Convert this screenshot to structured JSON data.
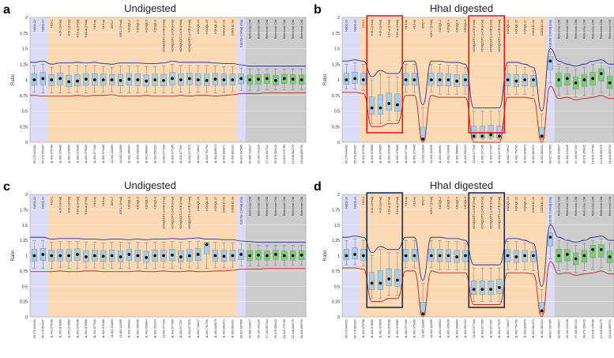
{
  "figure": {
    "colors": {
      "region_lavender": "#dcdcf8",
      "region_orange": "#fbd9b4",
      "region_gray": "#cccccc",
      "box_blue": "#a9cde4",
      "box_green": "#7ccf6e",
      "line_blue": "#2b2b9a",
      "line_red": "#c42222",
      "highlight_red": "#e01818",
      "highlight_navy": "#1b2a55",
      "point": "#111111"
    },
    "panels": [
      {
        "letter": "a",
        "title": "Undigested",
        "ylabel": "Ratio",
        "yticks": [
          "2",
          "1.75",
          "1.5",
          "1.25",
          "1",
          "0.75",
          "0.5",
          "0.25",
          "0"
        ],
        "highlight": "none"
      },
      {
        "letter": "b",
        "title": "HhaI digested",
        "ylabel": "Ratio",
        "yticks": [
          "2",
          "1.75",
          "1.5",
          "1.25",
          "1",
          "0.75",
          "0.5",
          "0.25",
          "0"
        ],
        "highlight": "red"
      },
      {
        "letter": "c",
        "title": "Undigested",
        "ylabel": "Ratio",
        "yticks": [
          "2",
          "1.75",
          "1.5",
          "1.25",
          "1",
          "0.75",
          "0.5",
          "0.25",
          "0"
        ],
        "highlight": "none"
      },
      {
        "letter": "d",
        "title": "HhaI digested",
        "ylabel": "Ratio",
        "yticks": [
          "2",
          "1.75",
          "1.5",
          "1.25",
          "1",
          "0.75",
          "0.5",
          "0.25",
          "0"
        ],
        "highlight": "navy"
      }
    ]
  },
  "chart_data": [
    {
      "type": "box",
      "panel": "a",
      "title": "Undigested",
      "ylabel": "Ratio",
      "ylim": [
        0,
        2
      ],
      "probe_labels": [
        "NSD1-22",
        "NSD1-24",
        "H19-1",
        "H19-1 [HhaI]",
        "H19-1 [HhaI]",
        "H19-up [HhaI]",
        "H19-up [HhaI]",
        "H19-up",
        "H19-up",
        "IGF2-7",
        "IGF2-7 [HhaI]",
        "KCNQ1-2",
        "KCNQ1-3",
        "KCNQ1-5",
        "KCNQ1-6",
        "KCNQ1OT1-1-ICR [HhaI]",
        "KCNQ1OT1-1-ICR [HhaI]",
        "KCNQ1OT1-1-ICR [HhaI]",
        "KCNQ1OT1-1-ICR [HhaI]",
        "KCNQ1-13",
        "KCNQ1-15",
        "KCNQ1-17",
        "CDKN1C-1b",
        "CDKN1C-3a",
        "ESCO2-3 [HhaI] (Dig)",
        "Reference C/M",
        "Reference C/M",
        "Reference C/M",
        "Reference C/M",
        "Reference C/M",
        "Reference C/M",
        "Reference C/M"
      ],
      "positions": [
        "05-176.640452",
        "05-176.654397",
        "11-001.975788",
        "11-001.976689",
        "11-001.976665",
        "11-001.976289",
        "11-001.976589",
        "11-001.977190",
        "11-001.979489",
        "11-002.111890",
        "11-002.111995",
        "11-002.356934",
        "11-002.439436",
        "11-002.566664",
        "11-002.591234",
        "11-002.677116",
        "11-002.677185",
        "11-002.677297",
        "11-002.677870",
        "11-002.746617",
        "11-002.754791",
        "11-002.826979",
        "11-002.861971",
        "11-002.862321",
        "08-027.697995",
        "02-060.416617",
        "03-194.341229",
        "07-116.607134",
        "09-079.359425",
        "16-015.375789",
        "12-048.852475",
        "18-046.859794"
      ],
      "category_types": [
        "lavender",
        "lavender",
        "orange",
        "orange",
        "orange",
        "orange",
        "orange",
        "orange",
        "orange",
        "orange",
        "orange",
        "orange",
        "orange",
        "orange",
        "orange",
        "orange",
        "orange",
        "orange",
        "orange",
        "orange",
        "orange",
        "orange",
        "orange",
        "orange",
        "lavender",
        "gray",
        "gray",
        "gray",
        "gray",
        "gray",
        "gray",
        "gray"
      ],
      "values": [
        1.0,
        1.02,
        1.0,
        1.02,
        0.97,
        0.98,
        1.01,
        1.0,
        1.0,
        1.0,
        0.99,
        1.01,
        1.0,
        0.98,
        1.0,
        0.99,
        1.02,
        1.0,
        1.02,
        1.0,
        0.99,
        1.01,
        1.0,
        1.0,
        1.02,
        1.0,
        1.01,
        1.02,
        0.99,
        1.02,
        1.01,
        1.0
      ],
      "upper_limit": [
        1.28,
        1.3,
        1.25,
        1.27,
        1.27,
        1.28,
        1.27,
        1.28,
        1.26,
        1.25,
        1.27,
        1.27,
        1.27,
        1.26,
        1.26,
        1.27,
        1.3,
        1.28,
        1.28,
        1.28,
        1.28,
        1.27,
        1.26,
        1.26,
        1.24,
        1.22,
        1.22,
        1.22,
        1.22,
        1.22,
        1.22,
        1.22
      ],
      "lower_limit": [
        0.75,
        0.74,
        0.74,
        0.74,
        0.74,
        0.75,
        0.74,
        0.75,
        0.75,
        0.76,
        0.74,
        0.74,
        0.74,
        0.75,
        0.74,
        0.74,
        0.74,
        0.75,
        0.74,
        0.75,
        0.75,
        0.74,
        0.75,
        0.76,
        0.78,
        0.78,
        0.78,
        0.79,
        0.79,
        0.79,
        0.79,
        0.79
      ]
    },
    {
      "type": "box",
      "panel": "b",
      "title": "HhaI digested",
      "ylabel": "Ratio",
      "ylim": [
        0,
        2
      ],
      "probe_labels": [
        "NSD1-22",
        "NSD1-24",
        "H19-1",
        "H19-1 [HhaI]",
        "H19-1 [HhaI]",
        "H19-up [HhaI]",
        "H19-up [HhaI]",
        "H19-up",
        "H19-up",
        "IGF2-7",
        "IGF2-7 [HhaI]",
        "KCNQ1-2",
        "KCNQ1-3",
        "KCNQ1-5",
        "KCNQ1-6",
        "KCNQ1OT1-1-ICR [HhaI]",
        "KCNQ1OT1-1-ICR [HhaI]",
        "KCNQ1OT1-1-ICR [HhaI]",
        "KCNQ1OT1-1-ICR [HhaI]",
        "KCNQ1-13",
        "KCNQ1-15",
        "KCNQ1-17",
        "CDKN1C-1b",
        "CDKN1C-3a",
        "ESCO2-3 [HhaI] (Dig)",
        "Reference C/M",
        "Reference C/M",
        "Reference C/M",
        "Reference C/M",
        "Reference C/M",
        "Reference C/M",
        "Reference C/M"
      ],
      "positions": [
        "05-176.640452",
        "05-176.654397",
        "11-001.975788",
        "11-001.976689",
        "11-001.976665",
        "11-001.976289",
        "11-001.976589",
        "11-001.977190",
        "11-001.979489",
        "11-002.111890",
        "11-002.111995",
        "11-002.356934",
        "11-002.439436",
        "11-002.566664",
        "11-002.591234",
        "11-002.677116",
        "11-002.677185",
        "11-002.677297",
        "11-002.677870",
        "11-002.746617",
        "11-002.754791",
        "11-002.826979",
        "11-002.861971",
        "11-002.862321",
        "08-027.697995",
        "02-060.416617",
        "03-194.341229",
        "07-116.607134",
        "09-079.359425",
        "16-015.375789",
        "12-048.852475",
        "18-046.859794"
      ],
      "category_types": [
        "lavender",
        "lavender",
        "orange",
        "orange",
        "orange",
        "orange",
        "orange",
        "orange",
        "orange",
        "orange",
        "orange",
        "orange",
        "orange",
        "orange",
        "orange",
        "orange",
        "orange",
        "orange",
        "orange",
        "orange",
        "orange",
        "orange",
        "orange",
        "orange",
        "lavender",
        "gray",
        "gray",
        "gray",
        "gray",
        "gray",
        "gray",
        "gray"
      ],
      "values": [
        1.0,
        1.02,
        1.0,
        0.55,
        0.55,
        0.62,
        0.6,
        1.0,
        1.0,
        0.05,
        1.0,
        1.0,
        1.0,
        0.98,
        1.0,
        0.1,
        0.1,
        0.12,
        0.1,
        1.0,
        0.98,
        1.0,
        1.0,
        0.1,
        1.3,
        1.0,
        1.02,
        0.95,
        1.0,
        1.02,
        1.1,
        0.95
      ],
      "upper_limit": [
        1.3,
        1.32,
        1.3,
        1.05,
        1.15,
        1.1,
        1.1,
        1.3,
        1.3,
        0.6,
        1.3,
        1.3,
        1.28,
        1.28,
        1.25,
        0.55,
        0.55,
        0.55,
        0.55,
        1.28,
        1.28,
        1.25,
        1.2,
        0.5,
        1.5,
        1.3,
        1.25,
        1.22,
        1.25,
        1.3,
        1.32,
        1.25
      ],
      "lower_limit": [
        0.8,
        0.8,
        0.78,
        0.25,
        0.25,
        0.3,
        0.3,
        0.75,
        0.75,
        0.0,
        0.75,
        0.72,
        0.72,
        0.72,
        0.72,
        0.0,
        0.0,
        0.0,
        0.0,
        0.72,
        0.72,
        0.72,
        0.7,
        0.0,
        0.9,
        0.7,
        0.72,
        0.68,
        0.7,
        0.72,
        0.75,
        0.7
      ]
    },
    {
      "type": "box",
      "panel": "c",
      "title": "Undigested",
      "ylabel": "Ratio",
      "ylim": [
        0,
        2
      ],
      "probe_labels": [
        "NSD1-22",
        "NSD1-24",
        "H19-1",
        "H19-1 [HhaI]",
        "H19-1 [HhaI]",
        "H19-up [HhaI]",
        "H19-up [HhaI]",
        "H19-up",
        "H19-up",
        "IGF2-7",
        "IGF2-7 [HhaI]",
        "KCNQ1-2",
        "KCNQ1-3",
        "KCNQ1-5",
        "KCNQ1-6",
        "KCNQ1OT1-1-ICR [HhaI]",
        "KCNQ1OT1-1-ICR [HhaI]",
        "KCNQ1OT1-1-ICR [HhaI]",
        "KCNQ1OT1-1-ICR [HhaI]",
        "KCNQ1-13",
        "KCNQ1-15",
        "KCNQ1-17",
        "CDKN1C-1b",
        "CDKN1C-3a",
        "ESCO2-3 [HhaI] (Dig)",
        "Reference C/M",
        "Reference C/M",
        "Reference C/M",
        "Reference C/M",
        "Reference C/M",
        "Reference C/M",
        "Reference C/M"
      ],
      "positions": [
        "05-176.640452",
        "05-176.654397",
        "11-001.975788",
        "11-001.976689",
        "11-001.976665",
        "11-001.976289",
        "11-001.976589",
        "11-001.977190",
        "11-001.979489",
        "11-002.111890",
        "11-002.111995",
        "11-002.356934",
        "11-002.439436",
        "11-002.566664",
        "11-002.591234",
        "11-002.677116",
        "11-002.677185",
        "11-002.677297",
        "11-002.677870",
        "11-002.746617",
        "11-002.754791",
        "11-002.826979",
        "11-002.861971",
        "11-002.862321",
        "08-027.697995",
        "02-060.416617",
        "03-194.341229",
        "07-116.607134",
        "09-079.359425",
        "16-015.375789",
        "12-048.852475",
        "18-046.859794"
      ],
      "category_types": [
        "lavender",
        "lavender",
        "orange",
        "orange",
        "orange",
        "orange",
        "orange",
        "orange",
        "orange",
        "orange",
        "orange",
        "orange",
        "orange",
        "orange",
        "orange",
        "orange",
        "orange",
        "orange",
        "orange",
        "orange",
        "orange",
        "orange",
        "orange",
        "orange",
        "lavender",
        "gray",
        "gray",
        "gray",
        "gray",
        "gray",
        "gray",
        "gray"
      ],
      "values": [
        1.0,
        1.02,
        1.0,
        1.0,
        1.0,
        1.02,
        0.98,
        1.0,
        0.99,
        1.0,
        0.98,
        1.02,
        1.0,
        0.97,
        1.0,
        1.0,
        1.01,
        0.98,
        1.0,
        1.02,
        1.18,
        1.0,
        0.99,
        1.0,
        1.02,
        1.0,
        1.01,
        1.0,
        1.02,
        1.0,
        1.0,
        1.01
      ],
      "upper_limit": [
        1.3,
        1.3,
        1.27,
        1.28,
        1.28,
        1.28,
        1.27,
        1.27,
        1.26,
        1.27,
        1.27,
        1.26,
        1.27,
        1.26,
        1.27,
        1.27,
        1.28,
        1.27,
        1.28,
        1.29,
        1.27,
        1.27,
        1.26,
        1.26,
        1.24,
        1.23,
        1.22,
        1.22,
        1.22,
        1.22,
        1.22,
        1.22
      ],
      "lower_limit": [
        0.74,
        0.74,
        0.74,
        0.75,
        0.74,
        0.74,
        0.75,
        0.75,
        0.74,
        0.74,
        0.74,
        0.74,
        0.75,
        0.74,
        0.74,
        0.75,
        0.74,
        0.74,
        0.75,
        0.74,
        0.74,
        0.75,
        0.75,
        0.76,
        0.78,
        0.78,
        0.78,
        0.79,
        0.79,
        0.79,
        0.79,
        0.79
      ]
    },
    {
      "type": "box",
      "panel": "d",
      "title": "HhaI digested",
      "ylabel": "Ratio",
      "ylim": [
        0,
        2
      ],
      "probe_labels": [
        "NSD1-22",
        "NSD1-24",
        "H19-1",
        "H19-1 [HhaI]",
        "H19-1 [HhaI]",
        "H19-up [HhaI]",
        "H19-up [HhaI]",
        "H19-up",
        "H19-up",
        "IGF2-7",
        "IGF2-7 [HhaI]",
        "KCNQ1-2",
        "KCNQ1-3",
        "KCNQ1-5",
        "KCNQ1-6",
        "KCNQ1OT1-1-ICR [HhaI]",
        "KCNQ1OT1-1-ICR [HhaI]",
        "KCNQ1OT1-1-ICR [HhaI]",
        "KCNQ1OT1-1-ICR [HhaI]",
        "KCNQ1-13",
        "KCNQ1-15",
        "KCNQ1-17",
        "CDKN1C-1b",
        "CDKN1C-3a",
        "ESCO2-3 [HhaI] (Dig)",
        "Reference C/M",
        "Reference C/M",
        "Reference C/M",
        "Reference C/M",
        "Reference C/M",
        "Reference C/M",
        "Reference C/M"
      ],
      "positions": [
        "05-176.640452",
        "05-176.654397",
        "11-001.975788",
        "11-001.976689",
        "11-001.976665",
        "11-001.976289",
        "11-001.976589",
        "11-001.977190",
        "11-001.979489",
        "11-002.111890",
        "11-002.111995",
        "11-002.356934",
        "11-002.439436",
        "11-002.566664",
        "11-002.591234",
        "11-002.677116",
        "11-002.677185",
        "11-002.677297",
        "11-002.677870",
        "11-002.746617",
        "11-002.754791",
        "11-002.826979",
        "11-002.861971",
        "11-002.862321",
        "08-027.697995",
        "02-060.416617",
        "03-194.341229",
        "07-116.607134",
        "09-079.359425",
        "16-015.375789",
        "12-048.852475",
        "18-046.859794"
      ],
      "category_types": [
        "lavender",
        "lavender",
        "orange",
        "orange",
        "orange",
        "orange",
        "orange",
        "orange",
        "orange",
        "orange",
        "orange",
        "orange",
        "orange",
        "orange",
        "orange",
        "orange",
        "orange",
        "orange",
        "orange",
        "orange",
        "orange",
        "orange",
        "orange",
        "orange",
        "lavender",
        "gray",
        "gray",
        "gray",
        "gray",
        "gray",
        "gray",
        "gray"
      ],
      "values": [
        1.0,
        1.02,
        1.0,
        0.55,
        0.55,
        0.62,
        0.6,
        1.0,
        1.0,
        0.05,
        1.0,
        1.0,
        1.0,
        0.98,
        1.0,
        0.45,
        0.45,
        0.45,
        0.48,
        1.0,
        0.98,
        1.0,
        1.0,
        0.1,
        1.3,
        1.0,
        1.02,
        0.95,
        1.0,
        1.1,
        1.1,
        0.98
      ],
      "upper_limit": [
        1.3,
        1.32,
        1.3,
        1.05,
        1.15,
        1.1,
        1.1,
        1.3,
        1.3,
        0.6,
        1.3,
        1.3,
        1.28,
        1.28,
        1.25,
        0.85,
        0.85,
        0.85,
        0.85,
        1.28,
        1.28,
        1.25,
        1.2,
        0.5,
        1.5,
        1.3,
        1.25,
        1.22,
        1.25,
        1.3,
        1.32,
        1.25
      ],
      "lower_limit": [
        0.8,
        0.8,
        0.78,
        0.25,
        0.25,
        0.3,
        0.3,
        0.75,
        0.75,
        0.0,
        0.75,
        0.72,
        0.72,
        0.72,
        0.72,
        0.2,
        0.2,
        0.2,
        0.2,
        0.72,
        0.72,
        0.72,
        0.7,
        0.0,
        0.9,
        0.7,
        0.72,
        0.68,
        0.7,
        0.72,
        0.75,
        0.7
      ]
    }
  ]
}
